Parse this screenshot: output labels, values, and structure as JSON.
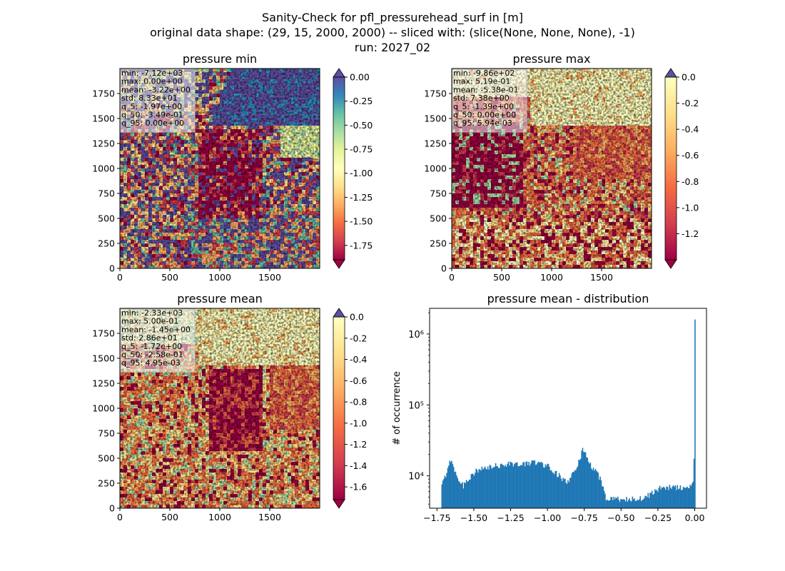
{
  "figure": {
    "suptitle": [
      "Sanity-Check for pfl_pressurehead_surf in [m]",
      "original data shape: (29, 15, 2000, 2000) -- sliced with: (slice(None, None, None), -1)",
      "run: 2027_02"
    ]
  },
  "colors": {
    "spectral": [
      "#9e0142",
      "#d53e4f",
      "#f46d43",
      "#fdae61",
      "#fee08b",
      "#ffffbf",
      "#e6f598",
      "#abdda4",
      "#66c2a5",
      "#3288bd",
      "#5e4fa2"
    ],
    "hist_bar": "#1f77b4"
  },
  "chart_data": [
    {
      "type": "heatmap",
      "title": "pressure min",
      "xticks": [
        "0",
        "500",
        "1000",
        "1500"
      ],
      "yticks": [
        "0",
        "250",
        "500",
        "750",
        "1000",
        "1250",
        "1500",
        "1750"
      ],
      "xlim": [
        0,
        2000
      ],
      "ylim": [
        0,
        2000
      ],
      "vmin": -1.9,
      "vmax": 0.0,
      "colorbar_ticks": [
        "0.00",
        "-0.25",
        "-0.50",
        "-0.75",
        "-1.00",
        "-1.25",
        "-1.50",
        "-1.75"
      ],
      "colorbar_tick_values": [
        0.0,
        -0.25,
        -0.5,
        -0.75,
        -1.0,
        -1.25,
        -1.5,
        -1.75
      ],
      "colorbar_extend": "both",
      "stats": [
        "min: -7.12e+03",
        "max: 0.00e+00",
        "mean: -3.22e+00",
        "std: 8.33e+01",
        "q_5: -1.97e+00",
        "q_50: -3.49e-01",
        "q_95: 0.00e+00"
      ]
    },
    {
      "type": "heatmap",
      "title": "pressure max",
      "xticks": [
        "0",
        "500",
        "1000",
        "1500"
      ],
      "yticks": [
        "0",
        "250",
        "500",
        "750",
        "1000",
        "1250",
        "1500",
        "1750"
      ],
      "xlim": [
        0,
        2000
      ],
      "ylim": [
        0,
        2000
      ],
      "vmin": -1.4,
      "vmax": 0.0,
      "colorbar_ticks": [
        "0.0",
        "-0.2",
        "-0.4",
        "-0.6",
        "-0.8",
        "-1.0",
        "-1.2"
      ],
      "colorbar_tick_values": [
        0.0,
        -0.2,
        -0.4,
        -0.6,
        -0.8,
        -1.0,
        -1.2
      ],
      "colorbar_extend": "both",
      "stats": [
        "min: -9.86e+02",
        "max: 5.19e-01",
        "mean: -5.38e-01",
        "std: 7.38e+00",
        "q_5: -1.39e+00",
        "q_50: 0.00e+00",
        "q_95: 5.94e-03"
      ]
    },
    {
      "type": "heatmap",
      "title": "pressure mean",
      "xticks": [
        "0",
        "500",
        "1000",
        "1500"
      ],
      "yticks": [
        "0",
        "250",
        "500",
        "750",
        "1000",
        "1250",
        "1500",
        "1750"
      ],
      "xlim": [
        0,
        2000
      ],
      "ylim": [
        0,
        2000
      ],
      "vmin": -1.72,
      "vmax": 0.0,
      "colorbar_ticks": [
        "0.0",
        "-0.2",
        "-0.4",
        "-0.6",
        "-0.8",
        "-1.0",
        "-1.2",
        "-1.4",
        "-1.6"
      ],
      "colorbar_tick_values": [
        0.0,
        -0.2,
        -0.4,
        -0.6,
        -0.8,
        -1.0,
        -1.2,
        -1.4,
        -1.6
      ],
      "colorbar_extend": "both",
      "stats": [
        "min: -2.33e+03",
        "max: 5.00e-01",
        "mean: -1.45e+00",
        "std: 2.86e+01",
        "q_5: -1.72e+00",
        "q_50: -2.58e-01",
        "q_95: 4.95e-03"
      ]
    },
    {
      "type": "bar",
      "title": "pressure mean - distribution",
      "ylabel": "# of occurrence",
      "xlabel": "",
      "yscale": "log",
      "xlim": [
        -1.8,
        0.08
      ],
      "ylim": [
        3500,
        2300000
      ],
      "xticks": [
        -1.75,
        -1.5,
        -1.25,
        -1.0,
        -0.75,
        -0.5,
        -0.25,
        0.0
      ],
      "xtick_labels": [
        "−1.75",
        "−1.50",
        "−1.25",
        "−1.00",
        "−0.75",
        "−0.50",
        "−0.25",
        "0.00"
      ],
      "yticks": [
        10000,
        100000,
        1000000
      ],
      "ytick_labels": [
        "10⁴",
        "10⁵",
        "10⁶"
      ],
      "bin_range": [
        -1.72,
        0.005
      ],
      "bin_count": 260,
      "counts_by_x": [
        [
          -1.72,
          7500
        ],
        [
          -1.71,
          8000
        ],
        [
          -1.69,
          10500
        ],
        [
          -1.67,
          14500
        ],
        [
          -1.66,
          17500
        ],
        [
          -1.64,
          14500
        ],
        [
          -1.62,
          10500
        ],
        [
          -1.6,
          9000
        ],
        [
          -1.58,
          7800
        ],
        [
          -1.57,
          7200
        ],
        [
          -1.55,
          8500
        ],
        [
          -1.53,
          9500
        ],
        [
          -1.51,
          10500
        ],
        [
          -1.49,
          11500
        ],
        [
          -1.45,
          12200
        ],
        [
          -1.4,
          13000
        ],
        [
          -1.35,
          13800
        ],
        [
          -1.3,
          14500
        ],
        [
          -1.25,
          15000
        ],
        [
          -1.2,
          14500
        ],
        [
          -1.15,
          14500
        ],
        [
          -1.1,
          15800
        ],
        [
          -1.05,
          15000
        ],
        [
          -1.0,
          14000
        ],
        [
          -0.97,
          12500
        ],
        [
          -0.93,
          10500
        ],
        [
          -0.9,
          9000
        ],
        [
          -0.87,
          8000
        ],
        [
          -0.84,
          9500
        ],
        [
          -0.81,
          12000
        ],
        [
          -0.78,
          17000
        ],
        [
          -0.76,
          24000
        ],
        [
          -0.74,
          22000
        ],
        [
          -0.72,
          16000
        ],
        [
          -0.7,
          13000
        ],
        [
          -0.68,
          12000
        ],
        [
          -0.66,
          10500
        ],
        [
          -0.64,
          9000
        ],
        [
          -0.62,
          7000
        ],
        [
          -0.61,
          5500
        ],
        [
          -0.6,
          4600
        ],
        [
          -0.5,
          4700
        ],
        [
          -0.4,
          4800
        ],
        [
          -0.33,
          5000
        ],
        [
          -0.3,
          5500
        ],
        [
          -0.27,
          6000
        ],
        [
          -0.23,
          6800
        ],
        [
          -0.2,
          7000
        ],
        [
          -0.1,
          6800
        ],
        [
          -0.05,
          6600
        ],
        [
          -0.02,
          7000
        ],
        [
          -0.01,
          9000
        ],
        [
          -0.005,
          17000
        ],
        [
          0.0,
          1600000
        ]
      ]
    }
  ]
}
